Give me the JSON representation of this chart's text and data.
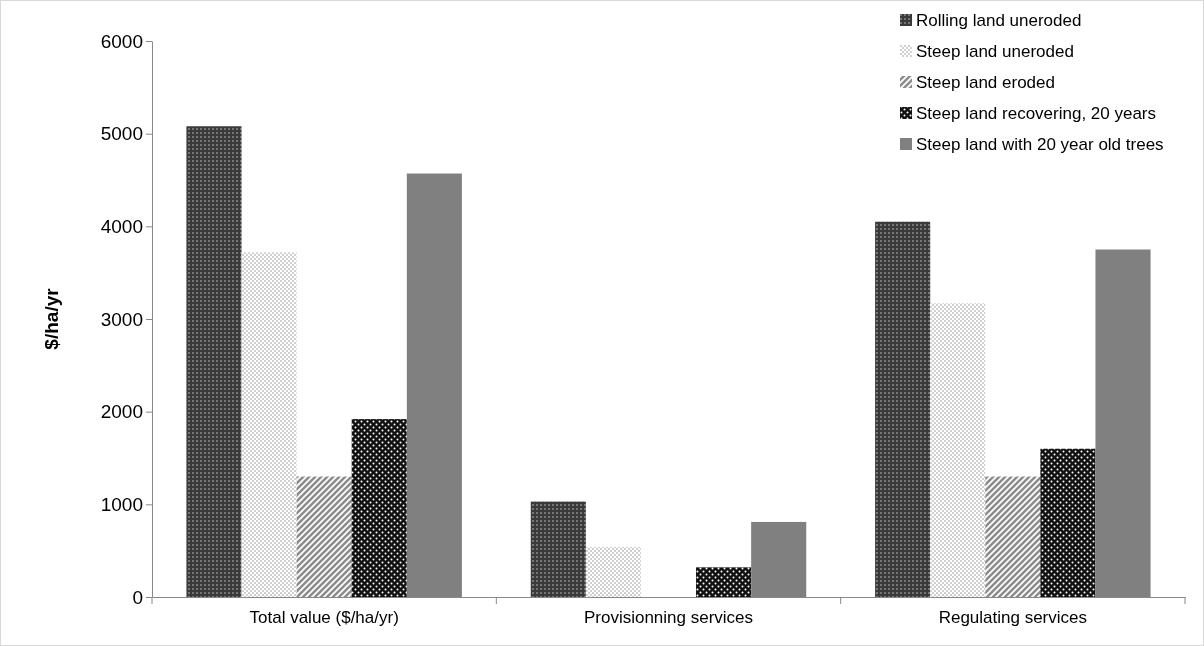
{
  "chart_data": {
    "type": "bar",
    "ylabel": "$/ha/yr",
    "categories": [
      "Total value ($/ha/yr)",
      "Provisionning services",
      "Regulating services"
    ],
    "ylim": [
      0,
      6000
    ],
    "yticks": [
      0,
      1000,
      2000,
      3000,
      4000,
      5000,
      6000
    ],
    "grid": false,
    "legend": "top right",
    "series": [
      {
        "name": "Rolling land uneroded",
        "color": "#3a3a3a",
        "values": [
          5080,
          1030,
          4050
        ]
      },
      {
        "name": "Steep land uneroded",
        "color": "#d0d0d0",
        "values": [
          3720,
          540,
          3170
        ]
      },
      {
        "name": "Steep land eroded",
        "color": "#8c8c8c",
        "values": [
          1300,
          0,
          1300
        ]
      },
      {
        "name": "Steep land recovering, 20 years",
        "color": "#111111",
        "values": [
          1920,
          320,
          1600
        ]
      },
      {
        "name": "Steep land with 20 year old trees",
        "color": "#808080",
        "values": [
          4570,
          810,
          3750
        ]
      }
    ]
  }
}
